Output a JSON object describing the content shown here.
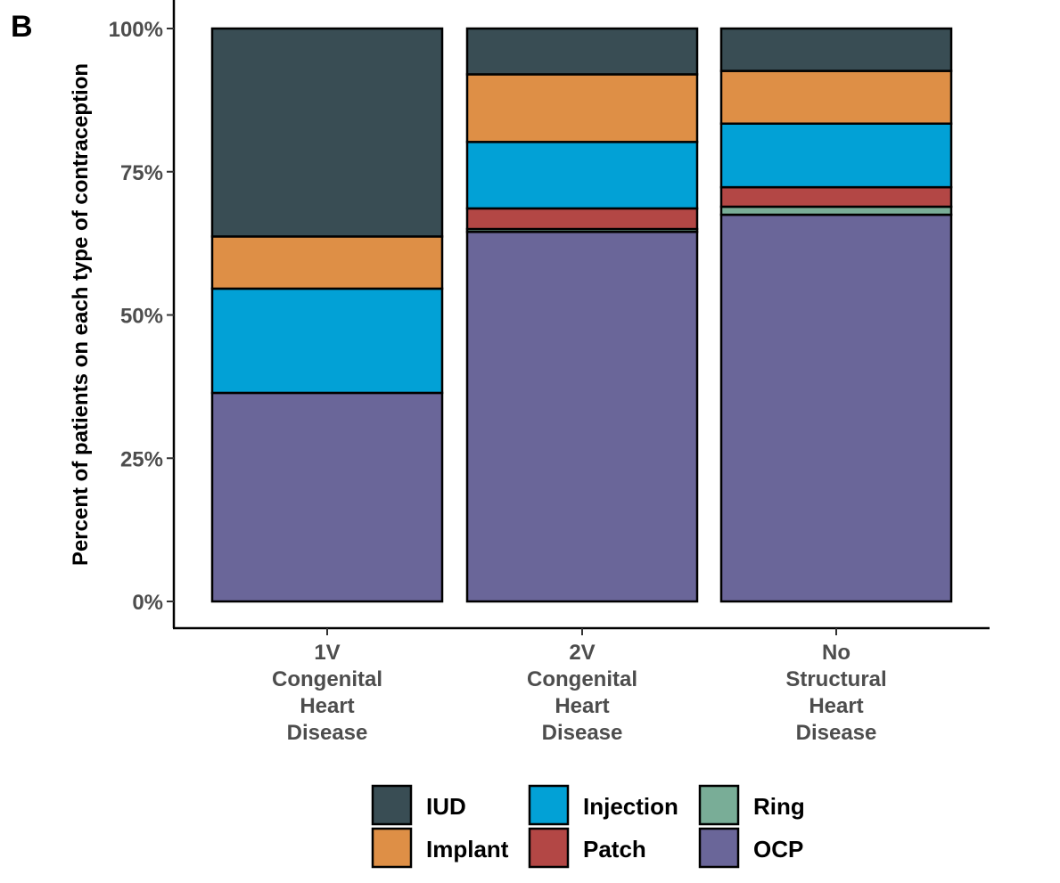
{
  "panel_label": "B",
  "chart_data": {
    "type": "bar",
    "stacked": true,
    "ylabel": "Percent of patients on each type of contraception",
    "xlabel": "",
    "ylim": [
      0,
      100
    ],
    "yticks": [
      0,
      25,
      50,
      75,
      100
    ],
    "ytick_labels": [
      "0%",
      "25%",
      "50%",
      "75%",
      "100%"
    ],
    "categories": [
      [
        "1V",
        "Congenital",
        "Heart",
        "Disease"
      ],
      [
        "2V",
        "Congenital",
        "Heart",
        "Disease"
      ],
      [
        "No",
        "Structural",
        "Heart",
        "Disease"
      ]
    ],
    "series": [
      {
        "name": "OCP",
        "color": "#6a6699",
        "values": [
          36.4,
          64.5,
          67.5
        ]
      },
      {
        "name": "Ring",
        "color": "#79ad97",
        "values": [
          0,
          0.5,
          1.4
        ]
      },
      {
        "name": "Patch",
        "color": "#b34745",
        "values": [
          0,
          3.6,
          3.4
        ]
      },
      {
        "name": "Injection",
        "color": "#02a1d6",
        "values": [
          18.2,
          11.6,
          11.1
        ]
      },
      {
        "name": "Implant",
        "color": "#de8f46",
        "values": [
          9.1,
          11.8,
          9.2
        ]
      },
      {
        "name": "IUD",
        "color": "#394d54",
        "values": [
          36.3,
          8.0,
          7.4
        ]
      }
    ],
    "grid": false,
    "legend": {
      "position": "bottom",
      "entries": [
        "IUD",
        "Implant",
        "Injection",
        "Patch",
        "Ring",
        "OCP"
      ]
    }
  }
}
